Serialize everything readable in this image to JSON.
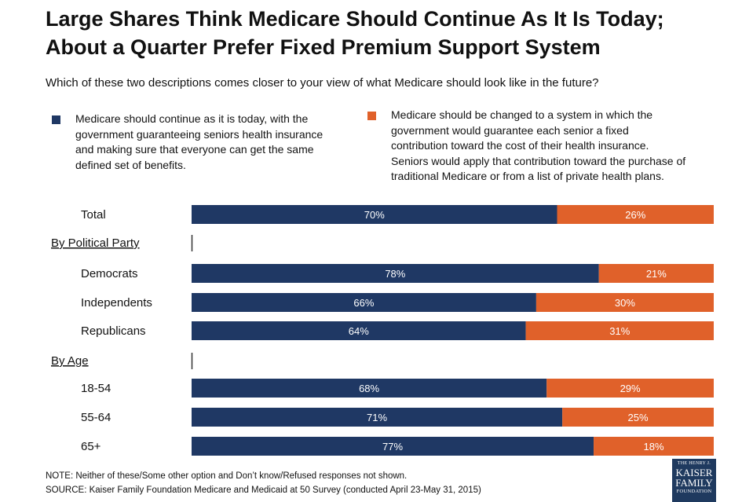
{
  "title_line1": "Large Shares Think Medicare Should Continue As It Is Today;",
  "title_line2": "About a Quarter Prefer Fixed Premium Support System",
  "question": "Which of these two descriptions comes closer to your view of what Medicare should look like in the future?",
  "legend": {
    "continue_lines": [
      "Medicare should continue as it is today, with the",
      "government guaranteeing seniors health insurance",
      "and making sure that everyone can get the same",
      "defined set of benefits."
    ],
    "change_lines": [
      "Medicare should be changed to a system in which the",
      "government would guarantee each senior a fixed",
      "contribution toward the cost of their health insurance.",
      "Seniors would apply that contribution toward the purchase of",
      "traditional Medicare or from a list of private health plans."
    ]
  },
  "colors": {
    "continue": "#1f3864",
    "change": "#e0612a",
    "bar_label": "#ffffff"
  },
  "chart_data": {
    "type": "bar",
    "orientation": "horizontal",
    "stacked": true,
    "xlim": [
      0,
      100
    ],
    "value_format": "percent",
    "series": [
      {
        "key": "continue",
        "values": [
          70,
          78,
          66,
          64,
          68,
          71,
          77
        ]
      },
      {
        "key": "change",
        "values": [
          26,
          21,
          30,
          31,
          29,
          25,
          18
        ]
      }
    ],
    "rows": [
      {
        "type": "category",
        "label": "Total",
        "index": 0
      },
      {
        "type": "header",
        "label": "By Political Party"
      },
      {
        "type": "category",
        "label": "Democrats",
        "index": 1
      },
      {
        "type": "category",
        "label": "Independents",
        "index": 2
      },
      {
        "type": "category",
        "label": "Republicans",
        "index": 3
      },
      {
        "type": "header",
        "label": "By Age"
      },
      {
        "type": "category",
        "label": "18-54",
        "index": 4
      },
      {
        "type": "category",
        "label": "55-64",
        "index": 5
      },
      {
        "type": "category",
        "label": "65+",
        "index": 6
      }
    ]
  },
  "notes": {
    "note": "NOTE: Neither of these/Some other option and Don’t know/Refused responses not shown.",
    "source": "SOURCE: Kaiser Family Foundation Medicare and Medicaid at 50 Survey (conducted April 23-May 31, 2015)"
  },
  "logo": {
    "line1": "THE HENRY J.",
    "line2": "KAISER",
    "line3": "FAMILY",
    "line4": "FOUNDATION"
  }
}
